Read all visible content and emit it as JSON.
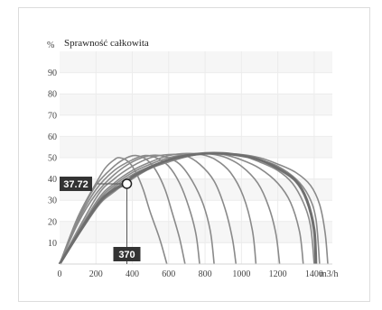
{
  "chart_data": {
    "type": "line",
    "title": "Sprawność całkowita",
    "ylabel": "%",
    "xlabel": "m3/h",
    "xlim": [
      0,
      1500
    ],
    "ylim": [
      0,
      100
    ],
    "x_ticks": [
      0,
      200,
      400,
      600,
      800,
      1000,
      1200,
      1400
    ],
    "y_ticks": [
      10,
      20,
      30,
      40,
      50,
      60,
      70,
      80,
      90
    ],
    "grid": true,
    "colors": {
      "curve": "#8a8a8a",
      "highlight_curve": "#6e6e6e",
      "grid": "#ececec",
      "band": "#f6f6f6",
      "marker_box": "#333333",
      "marker_fill": "#ffffff"
    },
    "series": [
      {
        "values": [
          [
            0,
            0
          ],
          [
            100,
            22
          ],
          [
            200,
            38
          ],
          [
            250,
            45
          ],
          [
            300,
            49
          ],
          [
            330,
            50
          ],
          [
            380,
            48
          ],
          [
            420,
            43
          ],
          [
            460,
            35
          ],
          [
            500,
            24
          ],
          [
            550,
            12
          ],
          [
            590,
            0
          ]
        ]
      },
      {
        "values": [
          [
            0,
            0
          ],
          [
            100,
            21
          ],
          [
            200,
            37
          ],
          [
            300,
            46
          ],
          [
            370,
            50
          ],
          [
            420,
            51
          ],
          [
            480,
            49
          ],
          [
            530,
            44
          ],
          [
            580,
            35
          ],
          [
            620,
            24
          ],
          [
            660,
            12
          ],
          [
            690,
            0
          ]
        ]
      },
      {
        "values": [
          [
            0,
            0
          ],
          [
            100,
            20
          ],
          [
            200,
            35
          ],
          [
            300,
            44
          ],
          [
            400,
            49
          ],
          [
            470,
            51
          ],
          [
            530,
            50
          ],
          [
            600,
            46
          ],
          [
            660,
            38
          ],
          [
            710,
            27
          ],
          [
            750,
            14
          ],
          [
            770,
            0
          ]
        ]
      },
      {
        "values": [
          [
            0,
            0
          ],
          [
            100,
            19
          ],
          [
            200,
            33
          ],
          [
            300,
            42
          ],
          [
            400,
            48
          ],
          [
            500,
            51
          ],
          [
            580,
            50.5
          ],
          [
            660,
            47
          ],
          [
            730,
            39
          ],
          [
            790,
            28
          ],
          [
            830,
            15
          ],
          [
            850,
            0
          ]
        ]
      },
      {
        "values": [
          [
            0,
            0
          ],
          [
            200,
            31
          ],
          [
            300,
            40
          ],
          [
            400,
            46
          ],
          [
            500,
            50
          ],
          [
            600,
            51.5
          ],
          [
            690,
            51
          ],
          [
            770,
            47
          ],
          [
            850,
            39
          ],
          [
            910,
            26
          ],
          [
            950,
            12
          ],
          [
            970,
            0
          ]
        ]
      },
      {
        "values": [
          [
            0,
            0
          ],
          [
            200,
            29
          ],
          [
            300,
            38
          ],
          [
            400,
            44
          ],
          [
            500,
            48
          ],
          [
            600,
            51
          ],
          [
            700,
            52
          ],
          [
            780,
            51.5
          ],
          [
            860,
            49
          ],
          [
            940,
            43
          ],
          [
            1010,
            32
          ],
          [
            1060,
            16
          ],
          [
            1080,
            0
          ]
        ]
      },
      {
        "values": [
          [
            0,
            0
          ],
          [
            200,
            28
          ],
          [
            300,
            37
          ],
          [
            400,
            43
          ],
          [
            500,
            47
          ],
          [
            600,
            50
          ],
          [
            700,
            51.5
          ],
          [
            800,
            52
          ],
          [
            900,
            50.5
          ],
          [
            1000,
            46
          ],
          [
            1090,
            38
          ],
          [
            1150,
            27
          ],
          [
            1190,
            14
          ],
          [
            1210,
            0
          ]
        ]
      },
      {
        "values": [
          [
            0,
            0
          ],
          [
            200,
            27
          ],
          [
            300,
            36
          ],
          [
            400,
            42
          ],
          [
            500,
            46
          ],
          [
            600,
            49
          ],
          [
            700,
            51
          ],
          [
            800,
            52
          ],
          [
            900,
            51.5
          ],
          [
            1000,
            49
          ],
          [
            1100,
            45
          ],
          [
            1200,
            38
          ],
          [
            1270,
            29
          ],
          [
            1320,
            15
          ],
          [
            1340,
            0
          ]
        ]
      },
      {
        "values": [
          [
            0,
            0
          ],
          [
            200,
            27
          ],
          [
            300,
            35
          ],
          [
            400,
            41
          ],
          [
            500,
            46
          ],
          [
            600,
            49
          ],
          [
            700,
            51
          ],
          [
            800,
            52
          ],
          [
            900,
            52
          ],
          [
            1000,
            51
          ],
          [
            1100,
            48
          ],
          [
            1200,
            44
          ],
          [
            1280,
            38
          ],
          [
            1340,
            29
          ],
          [
            1380,
            18
          ],
          [
            1400,
            0
          ]
        ]
      },
      {
        "values": [
          [
            0,
            0
          ],
          [
            200,
            26
          ],
          [
            300,
            35
          ],
          [
            400,
            41
          ],
          [
            500,
            45
          ],
          [
            600,
            48.5
          ],
          [
            700,
            51
          ],
          [
            800,
            52
          ],
          [
            900,
            52
          ],
          [
            1000,
            51
          ],
          [
            1100,
            49
          ],
          [
            1200,
            46
          ],
          [
            1300,
            40
          ],
          [
            1370,
            32
          ],
          [
            1410,
            21
          ],
          [
            1430,
            0
          ]
        ]
      },
      {
        "values": [
          [
            0,
            0
          ],
          [
            200,
            26
          ],
          [
            300,
            34
          ],
          [
            400,
            40
          ],
          [
            500,
            45
          ],
          [
            600,
            48
          ],
          [
            700,
            50.5
          ],
          [
            800,
            52
          ],
          [
            900,
            52
          ],
          [
            1000,
            51.5
          ],
          [
            1100,
            50
          ],
          [
            1200,
            47
          ],
          [
            1300,
            43
          ],
          [
            1380,
            37
          ],
          [
            1430,
            28
          ],
          [
            1460,
            15
          ],
          [
            1475,
            0
          ]
        ]
      }
    ],
    "highlight_series": [
      {
        "values": [
          [
            0,
            0
          ],
          [
            200,
            27
          ],
          [
            300,
            35
          ],
          [
            370,
            37.72
          ],
          [
            400,
            41
          ],
          [
            500,
            45.5
          ],
          [
            600,
            49
          ],
          [
            700,
            51
          ],
          [
            800,
            52
          ],
          [
            900,
            52
          ],
          [
            1000,
            51
          ],
          [
            1100,
            49
          ],
          [
            1200,
            45
          ],
          [
            1300,
            39
          ],
          [
            1360,
            30
          ],
          [
            1400,
            16
          ],
          [
            1410,
            0
          ]
        ]
      }
    ],
    "marker": {
      "x": 370,
      "y": 37.72,
      "x_label": "370",
      "y_label": "37.72"
    }
  }
}
